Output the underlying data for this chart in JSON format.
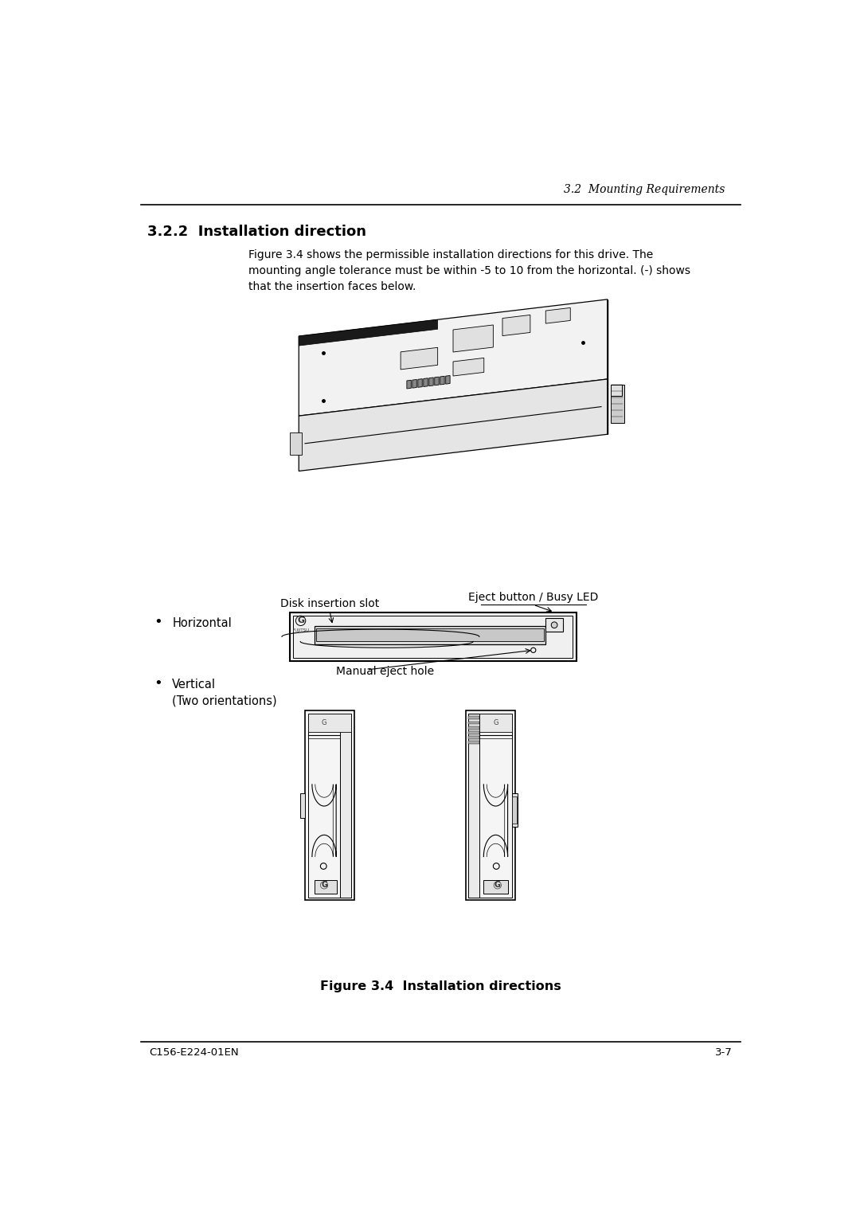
{
  "page_width": 10.8,
  "page_height": 15.28,
  "bg_color": "#ffffff",
  "header_text": "3.2  Mounting Requirements",
  "section_title": "3.2.2  Installation direction",
  "body_text": "Figure 3.4 shows the permissible installation directions for this drive. The\nmounting angle tolerance must be within -5 to 10 from the horizontal. (-) shows\nthat the insertion faces below.",
  "bullet1_text": "Horizontal",
  "bullet2_text": "Vertical\n(Two orientations)",
  "disk_insert_label": "Disk insertion slot",
  "eject_label": "Eject button / Busy LED",
  "manual_eject_label": "Manual eject hole",
  "figure_caption": "Figure 3.4  Installation directions",
  "footer_left": "C156-E224-01EN",
  "footer_right": "3-7",
  "text_color": "#000000",
  "line_color": "#000000"
}
